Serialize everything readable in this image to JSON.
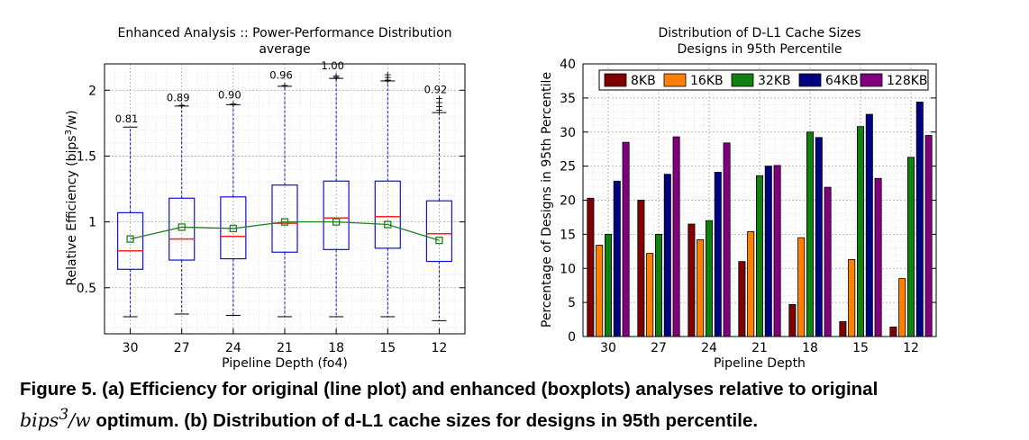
{
  "chart_data": [
    {
      "type": "boxplot",
      "title": "Enhanced Analysis :: Power-Performance Distribution",
      "subtitle": "average",
      "xlabel": "Pipeline Depth (fo4)",
      "ylabel_prefix": "Relative Efficiency (bips",
      "ylabel_sup": "3",
      "ylabel_suffix": "/w)",
      "categories": [
        "30",
        "27",
        "24",
        "21",
        "18",
        "15",
        "12"
      ],
      "ylim": [
        0.15,
        2.2
      ],
      "yticks": [
        0.5,
        1,
        1.5,
        2
      ],
      "ytick_labels": [
        "0.5",
        "1",
        "1.5",
        "2"
      ],
      "grid": true,
      "boxes": [
        {
          "whisker_low": 0.28,
          "q1": 0.64,
          "median": 0.78,
          "q3": 1.07,
          "whisker_high": 1.72,
          "outliers": []
        },
        {
          "whisker_low": 0.3,
          "q1": 0.71,
          "median": 0.87,
          "q3": 1.18,
          "whisker_high": 1.88,
          "outliers": [
            1.89
          ]
        },
        {
          "whisker_low": 0.29,
          "q1": 0.72,
          "median": 0.89,
          "q3": 1.19,
          "whisker_high": 1.89,
          "outliers": [
            1.9
          ]
        },
        {
          "whisker_low": 0.28,
          "q1": 0.77,
          "median": 0.99,
          "q3": 1.28,
          "whisker_high": 2.03,
          "outliers": [
            2.04
          ]
        },
        {
          "whisker_low": 0.28,
          "q1": 0.79,
          "median": 1.03,
          "q3": 1.31,
          "whisker_high": 2.09,
          "outliers": [
            2.1,
            2.11
          ]
        },
        {
          "whisker_low": 0.28,
          "q1": 0.8,
          "median": 1.04,
          "q3": 1.31,
          "whisker_high": 2.07,
          "outliers": [
            2.08,
            2.1,
            2.12
          ]
        },
        {
          "whisker_low": 0.25,
          "q1": 0.7,
          "median": 0.91,
          "q3": 1.16,
          "whisker_high": 1.83,
          "outliers": [
            1.85,
            1.88,
            1.91,
            1.94
          ]
        }
      ],
      "max_labels": [
        "0.81",
        "0.89",
        "0.90",
        "0.96",
        "1.00",
        "",
        "0.92"
      ],
      "max_label_values": [
        1.73,
        1.89,
        1.91,
        2.06,
        2.13,
        0,
        1.95
      ],
      "line_values": [
        0.87,
        0.96,
        0.95,
        1.0,
        1.0,
        0.98,
        0.86
      ],
      "colors": {
        "box": "#1010e0",
        "median": "#ff2020",
        "outlier": "#ff0000",
        "line": "#208020",
        "marker": "#208020"
      }
    },
    {
      "type": "bar",
      "title": "Distribution of D-L1 Cache Sizes",
      "subtitle": "Designs in 95th Percentile",
      "xlabel": "Pipeline Depth",
      "ylabel": "Percentage of Designs in 95th Percentile",
      "categories": [
        "30",
        "27",
        "24",
        "21",
        "18",
        "15",
        "12"
      ],
      "ylim": [
        0,
        40
      ],
      "yticks": [
        0,
        5,
        10,
        15,
        20,
        25,
        30,
        35,
        40
      ],
      "ytick_labels": [
        "0",
        "5",
        "10",
        "15",
        "20",
        "25",
        "30",
        "35",
        "40"
      ],
      "grid": true,
      "legend_position": "top",
      "series": [
        {
          "name": "8KB",
          "color": "#800000",
          "values": [
            20.3,
            20.0,
            16.5,
            11.0,
            4.7,
            2.2,
            1.4
          ]
        },
        {
          "name": "16KB",
          "color": "#ff8000",
          "values": [
            13.4,
            12.2,
            14.2,
            15.4,
            14.5,
            11.3,
            8.5
          ]
        },
        {
          "name": "32KB",
          "color": "#108010",
          "values": [
            15.0,
            15.0,
            17.0,
            23.6,
            30.0,
            30.8,
            26.3
          ]
        },
        {
          "name": "64KB",
          "color": "#000080",
          "values": [
            22.8,
            23.8,
            24.1,
            25.0,
            29.2,
            32.6,
            34.4
          ]
        },
        {
          "name": "128KB",
          "color": "#800080",
          "values": [
            28.5,
            29.3,
            28.4,
            25.1,
            21.9,
            23.2,
            29.5
          ]
        }
      ]
    }
  ],
  "caption": {
    "part1": "Figure 5. (a) Efficiency for original (line plot) and enhanced (boxplots) analyses relative to original",
    "math_base": "bips",
    "math_sup": "3",
    "math_rest": "/w",
    "part2": " optimum. (b) Distribution of d-L1 cache sizes for designs in 95th percentile."
  }
}
